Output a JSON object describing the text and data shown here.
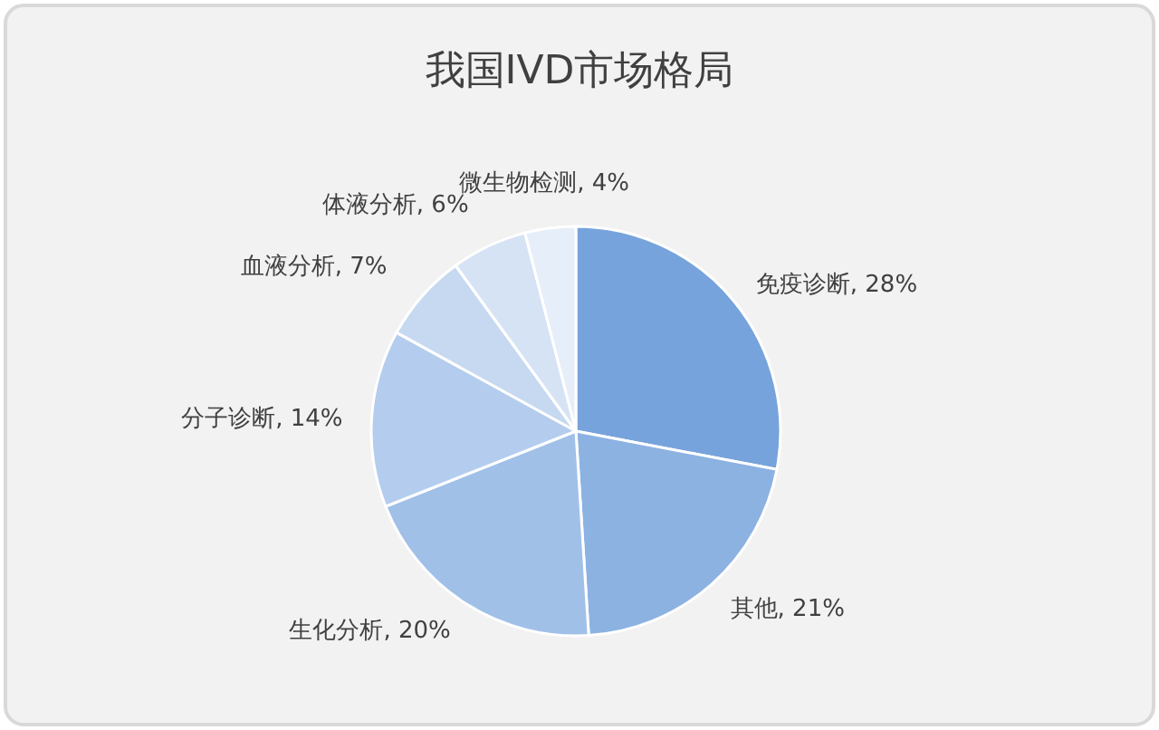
{
  "chart_data": {
    "type": "pie",
    "title": "我国IVD市场格局",
    "categories": [
      "免疫诊断",
      "其他",
      "生化分析",
      "分子诊断",
      "血液分析",
      "体液分析",
      "微生物检测"
    ],
    "values": [
      28,
      21,
      20,
      14,
      7,
      6,
      4
    ],
    "value_labels": [
      ", 28%",
      ", 21%",
      ", 20%",
      ", 14%",
      ", 7%",
      ", 6%",
      ", 4%"
    ],
    "colors": [
      "#77a3dc",
      "#8cb2e2",
      "#a0c0e8",
      "#b4cdee",
      "#c6d9f1",
      "#d6e3f5",
      "#e6eef9"
    ]
  }
}
